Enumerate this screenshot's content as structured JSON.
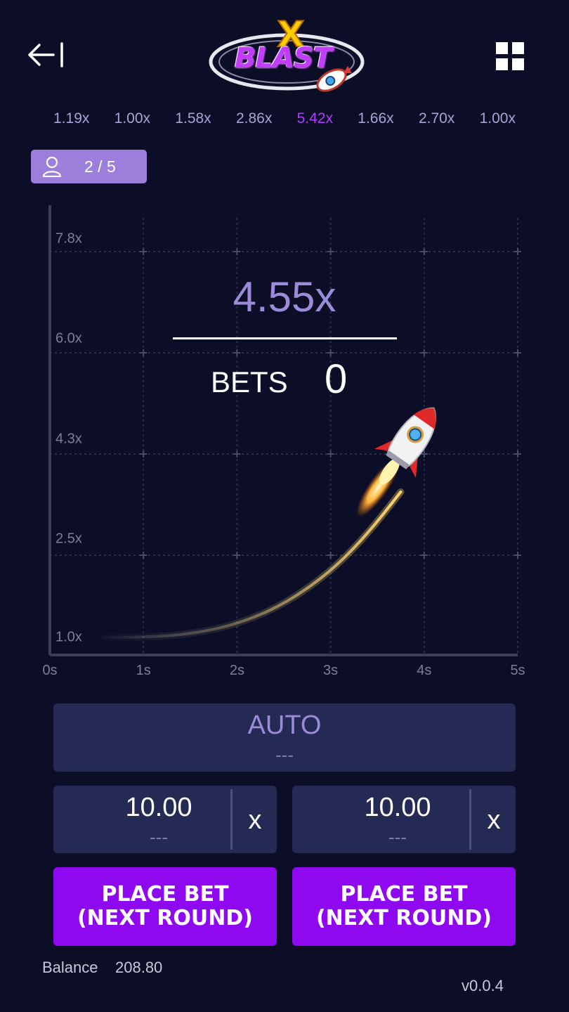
{
  "header": {
    "back_icon": "arrow-left-bar-icon",
    "menu_icon": "grid-icon",
    "logo": {
      "letter": "X",
      "word": "BLAST"
    }
  },
  "history": [
    "1.19x",
    "1.00x",
    "1.58x",
    "2.86x",
    "5.42x",
    "1.66x",
    "2.70x",
    "1.00x"
  ],
  "history_highlight_index": 4,
  "colors": {
    "background": "#0b0e26",
    "accent_purple": "#8e08f0",
    "muted_purple": "#9c8bd8",
    "highlight": "#b23bff",
    "panel": "#252a55"
  },
  "players": {
    "icon": "user-icon",
    "label": "2 / 5"
  },
  "game": {
    "multiplier": "4.55x",
    "bets_label": "BETS",
    "bets_value": "0",
    "rocket_icon": "rocket-icon"
  },
  "chart_data": {
    "type": "line",
    "x_ticks": [
      "0s",
      "1s",
      "2s",
      "3s",
      "4s",
      "5s"
    ],
    "y_ticks": [
      "7.8x",
      "6.0x",
      "4.3x",
      "2.5x",
      "1.0x"
    ],
    "xlim": [
      0,
      5
    ],
    "ylim": [
      1.0,
      8.8
    ],
    "grid": true,
    "series": [
      {
        "points": [
          [
            0.5,
            1.0
          ],
          [
            1.0,
            1.0
          ],
          [
            1.5,
            1.05
          ],
          [
            2.0,
            1.2
          ],
          [
            2.5,
            1.5
          ],
          [
            3.0,
            2.0
          ],
          [
            3.4,
            2.6
          ],
          [
            3.75,
            3.35
          ]
        ]
      }
    ]
  },
  "controls": {
    "auto_label": "AUTO",
    "auto_sub": "---",
    "bets": [
      {
        "amount": "10.00",
        "sub": "---",
        "clear": "x",
        "button_line1": "PLACE BET",
        "button_line2": "(NEXT ROUND)"
      },
      {
        "amount": "10.00",
        "sub": "---",
        "clear": "x",
        "button_line1": "PLACE BET",
        "button_line2": "(NEXT ROUND)"
      }
    ]
  },
  "footer": {
    "balance_label": "Balance",
    "balance_value": "208.80",
    "version": "v0.0.4"
  }
}
